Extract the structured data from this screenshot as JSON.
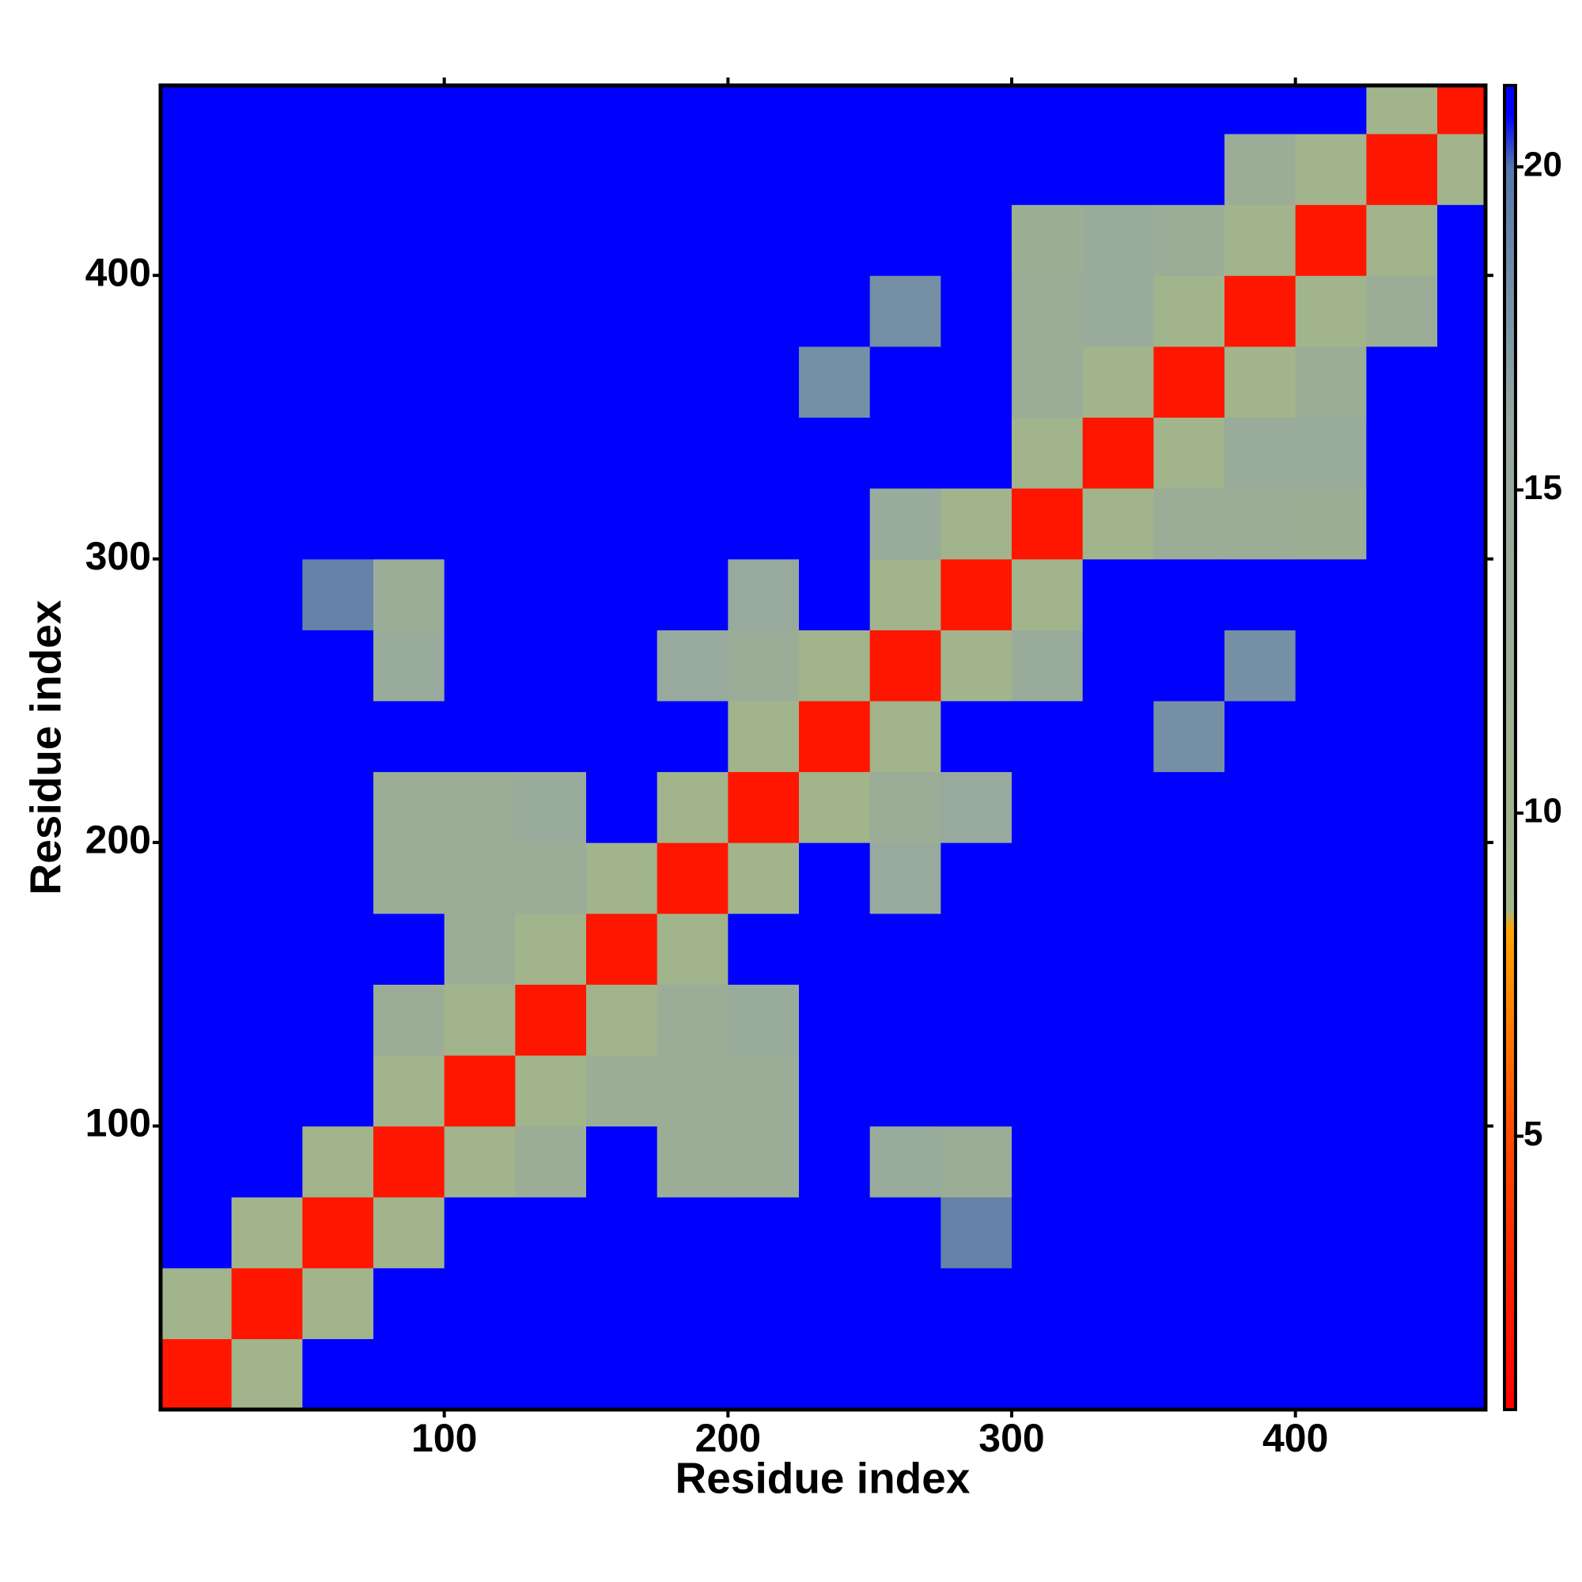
{
  "chart_data": {
    "type": "heatmap",
    "x_label": "Residue index",
    "y_label": "Residue index",
    "xbins": [
      0,
      25,
      50,
      75,
      100,
      125,
      150,
      175,
      200,
      225,
      250,
      275,
      300,
      325,
      350,
      375,
      400,
      425,
      450,
      467
    ],
    "ybins": [
      0,
      25,
      50,
      75,
      100,
      125,
      150,
      175,
      200,
      225,
      250,
      275,
      300,
      325,
      350,
      375,
      400,
      425,
      450,
      467
    ],
    "z": [
      [
        2,
        9,
        21,
        21,
        21,
        21,
        21,
        21,
        21,
        21,
        21,
        21,
        21,
        21,
        21,
        21,
        21,
        21,
        21
      ],
      [
        9,
        2,
        9,
        21,
        21,
        21,
        21,
        21,
        21,
        21,
        21,
        21,
        21,
        21,
        21,
        21,
        21,
        21,
        21
      ],
      [
        21,
        9,
        2,
        9,
        21,
        21,
        21,
        21,
        21,
        21,
        21,
        19,
        21,
        21,
        21,
        21,
        21,
        21,
        21
      ],
      [
        21,
        21,
        9,
        2,
        9,
        13,
        21,
        13,
        13,
        21,
        14,
        13,
        21,
        21,
        21,
        21,
        21,
        21,
        21
      ],
      [
        21,
        21,
        21,
        9,
        2,
        9,
        13,
        13,
        13,
        21,
        21,
        21,
        21,
        21,
        21,
        21,
        21,
        21,
        21
      ],
      [
        21,
        21,
        21,
        13,
        9,
        2,
        9,
        13,
        14,
        21,
        21,
        21,
        21,
        21,
        21,
        21,
        21,
        21,
        21
      ],
      [
        21,
        21,
        21,
        21,
        13,
        9,
        2,
        9,
        21,
        21,
        21,
        21,
        21,
        21,
        21,
        21,
        21,
        21,
        21
      ],
      [
        21,
        21,
        21,
        13,
        13,
        13,
        9,
        2,
        9,
        21,
        15,
        21,
        21,
        21,
        21,
        21,
        21,
        21,
        21
      ],
      [
        21,
        21,
        21,
        13,
        13,
        14,
        21,
        9,
        2,
        9,
        13,
        15,
        21,
        21,
        21,
        21,
        21,
        21,
        21
      ],
      [
        21,
        21,
        21,
        21,
        21,
        21,
        21,
        21,
        9,
        2,
        9,
        21,
        21,
        21,
        18,
        21,
        21,
        21,
        21
      ],
      [
        21,
        21,
        21,
        14,
        21,
        21,
        21,
        15,
        13,
        9,
        2,
        9,
        14,
        21,
        21,
        18,
        21,
        21,
        21
      ],
      [
        21,
        21,
        19,
        13,
        21,
        21,
        21,
        21,
        15,
        21,
        9,
        2,
        9,
        21,
        21,
        21,
        21,
        21,
        21
      ],
      [
        21,
        21,
        21,
        21,
        21,
        21,
        21,
        21,
        21,
        21,
        14,
        9,
        2,
        9,
        13,
        13,
        12,
        21,
        21
      ],
      [
        21,
        21,
        21,
        21,
        21,
        21,
        21,
        21,
        21,
        21,
        21,
        21,
        9,
        2,
        9,
        14,
        14,
        21,
        21
      ],
      [
        21,
        21,
        21,
        21,
        21,
        21,
        21,
        21,
        21,
        18,
        21,
        21,
        13,
        9,
        2,
        9,
        13,
        21,
        21
      ],
      [
        21,
        21,
        21,
        21,
        21,
        21,
        21,
        21,
        21,
        21,
        18,
        21,
        13,
        14,
        9,
        2,
        9,
        13,
        21
      ],
      [
        21,
        21,
        21,
        21,
        21,
        21,
        21,
        21,
        21,
        21,
        21,
        21,
        12,
        14,
        13,
        9,
        2,
        9,
        21
      ],
      [
        21,
        21,
        21,
        21,
        21,
        21,
        21,
        21,
        21,
        21,
        21,
        21,
        21,
        21,
        21,
        13,
        9,
        2,
        9
      ],
      [
        21,
        21,
        21,
        21,
        21,
        21,
        21,
        21,
        21,
        21,
        21,
        21,
        21,
        21,
        21,
        21,
        21,
        9,
        2
      ]
    ],
    "xlim": [
      0,
      467
    ],
    "ylim": [
      0,
      467
    ],
    "xticks": [
      100,
      200,
      300,
      400
    ],
    "yticks": [
      100,
      200,
      300,
      400
    ],
    "clim": [
      0.77,
      21.26
    ],
    "cticks": [
      5,
      10,
      15,
      20
    ],
    "colorscale": [
      {
        "value": 0.77,
        "color": "#ff0000"
      },
      {
        "value": 5,
        "color": "#ff4a00"
      },
      {
        "value": 8.2,
        "color": "#ffa500"
      },
      {
        "value": 8.5,
        "color": "#a3b58a"
      },
      {
        "value": 16,
        "color": "#95a8a0"
      },
      {
        "value": 20,
        "color": "#5577aa"
      },
      {
        "value": 20.8,
        "color": "#0000ff"
      },
      {
        "value": 21.26,
        "color": "#0000ff"
      }
    ]
  }
}
